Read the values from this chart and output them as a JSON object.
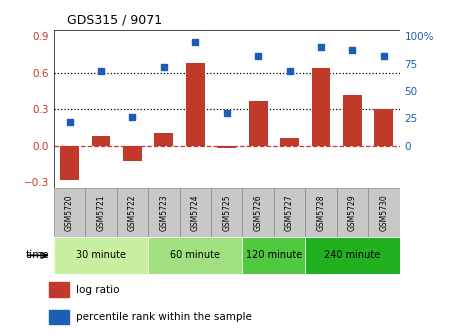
{
  "title": "GDS315 / 9071",
  "samples": [
    "GSM5720",
    "GSM5721",
    "GSM5722",
    "GSM5723",
    "GSM5724",
    "GSM5725",
    "GSM5726",
    "GSM5727",
    "GSM5728",
    "GSM5729",
    "GSM5730"
  ],
  "log_ratio": [
    -0.28,
    0.08,
    -0.13,
    0.1,
    0.68,
    -0.02,
    0.37,
    0.06,
    0.64,
    0.42,
    0.3
  ],
  "percentile": [
    22,
    68,
    26,
    72,
    95,
    30,
    82,
    68,
    90,
    87,
    82
  ],
  "bar_color": "#c0392b",
  "dot_color": "#1a5fb4",
  "ylim_left": [
    -0.35,
    0.95
  ],
  "ylim_right": [
    -8.75,
    23.75
  ],
  "yticks_left": [
    -0.3,
    0.0,
    0.3,
    0.6,
    0.9
  ],
  "yticks_right": [
    0,
    25,
    50,
    75,
    100
  ],
  "dotted_lines": [
    0.3,
    0.6
  ],
  "zero_dashed_color": "#c0392b",
  "groups": [
    {
      "label": "30 minute",
      "start": 0,
      "end": 2,
      "color": "#c8f0a0"
    },
    {
      "label": "60 minute",
      "start": 3,
      "end": 5,
      "color": "#a0e080"
    },
    {
      "label": "120 minute",
      "start": 6,
      "end": 7,
      "color": "#50c840"
    },
    {
      "label": "240 minute",
      "start": 8,
      "end": 10,
      "color": "#20b020"
    }
  ],
  "xlabel_time": "time",
  "legend_log": "log ratio",
  "legend_pct": "percentile rank within the sample",
  "bg_color": "#ffffff",
  "plot_bg": "#ffffff",
  "tick_label_color_left": "#c0392b",
  "tick_label_color_right": "#1a5fb4",
  "sample_box_color": "#c8c8c8",
  "sample_box_edge": "#888888"
}
